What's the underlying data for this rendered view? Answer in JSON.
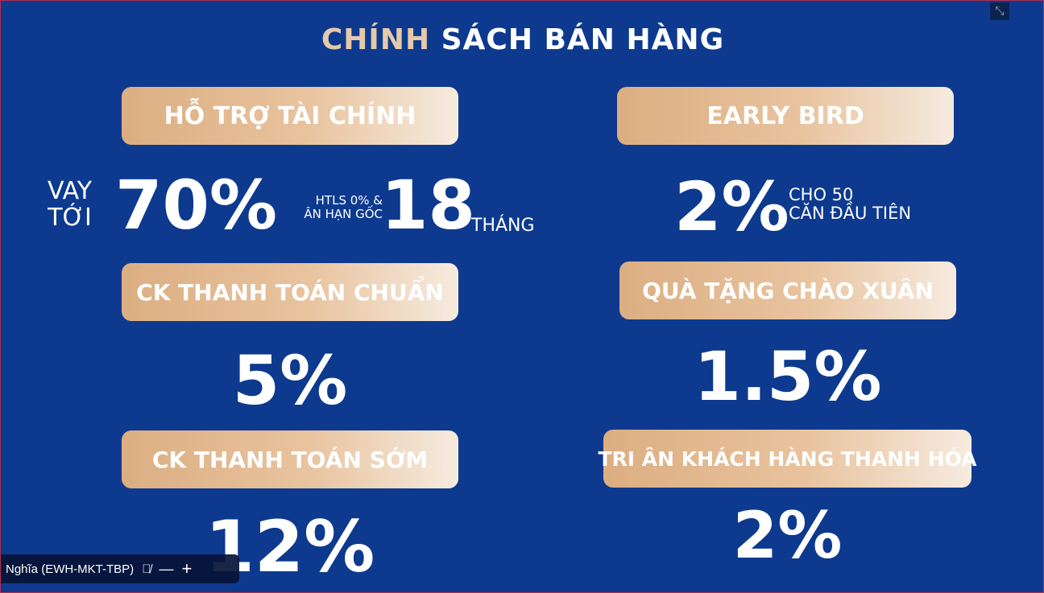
{
  "title": {
    "part1": "CHÍNH",
    "part2": " SÁCH BÁN HÀNG"
  },
  "sections": [
    {
      "label": "HỖ TRỢ TÀI CHÍNH",
      "prefix": "VAY",
      "prefix2": "TỚI",
      "value": "70%",
      "note1": "HTLS 0% &",
      "note2": "ÂN HẠN GỐC",
      "value2": "18",
      "unit": "THÁNG"
    },
    {
      "label": "EARLY BIRD",
      "value": "2%",
      "note1": "CHO 50",
      "note2": "CĂN ĐẦU TIÊN"
    },
    {
      "label": "CK THANH TOÁN CHUẨN",
      "value": "5%"
    },
    {
      "label": "QUÀ TẶNG CHÀO XUÂN",
      "value": "1.5%"
    },
    {
      "label": "CK THANH TOÁN SỚM",
      "value": "12%"
    },
    {
      "label": "TRI ÂN KHÁCH HÀNG THANH HÓA",
      "value": "2%"
    }
  ],
  "participant": {
    "name": "Nghĩa (EWH-MKT-TBP)",
    "icons": [
      "mic-off-icon",
      "minimize-icon",
      "add-icon"
    ]
  },
  "colors": {
    "background": "#0d3a8e",
    "accent": "#e6c9a8"
  }
}
